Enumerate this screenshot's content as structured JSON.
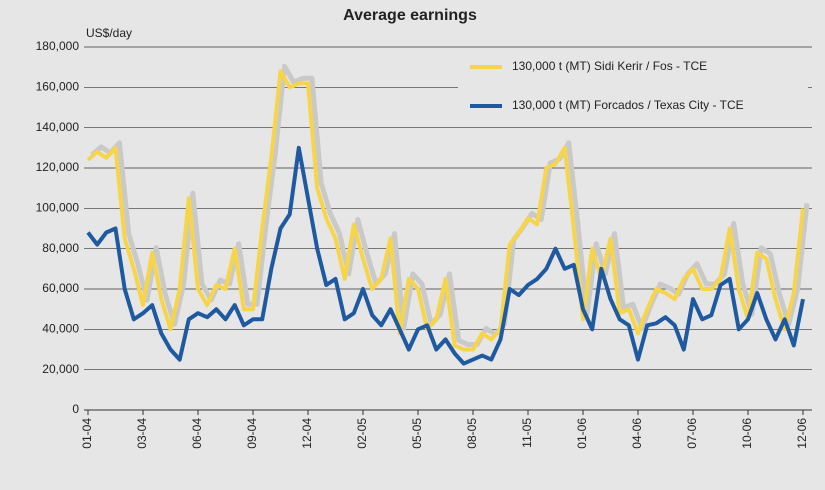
{
  "chart_data": {
    "type": "line",
    "title": "Average earnings",
    "ylabel": "US$/day",
    "categories": [
      "01-04",
      null,
      null,
      null,
      null,
      null,
      "03-04",
      null,
      null,
      null,
      null,
      null,
      "06-04",
      null,
      null,
      null,
      null,
      null,
      "09-04",
      null,
      null,
      null,
      null,
      null,
      "12-04",
      null,
      null,
      null,
      null,
      null,
      "02-05",
      null,
      null,
      null,
      null,
      null,
      "05-05",
      null,
      null,
      null,
      null,
      null,
      "08-05",
      null,
      null,
      null,
      null,
      null,
      "11-05",
      null,
      null,
      null,
      null,
      null,
      "01-06",
      null,
      null,
      null,
      null,
      null,
      "04-06",
      null,
      null,
      null,
      null,
      null,
      "07-06",
      null,
      null,
      null,
      null,
      null,
      "10-06",
      null,
      null,
      null,
      null,
      null,
      "12-06"
    ],
    "series": [
      {
        "name": "130,000 t (MT) Sidi Kerir / Fos - TCE",
        "color": "#f7d54a",
        "values": [
          124000,
          128000,
          125000,
          130000,
          85000,
          70000,
          52000,
          78000,
          55000,
          40000,
          60000,
          105000,
          60000,
          52000,
          62000,
          60000,
          80000,
          50000,
          50000,
          90000,
          125000,
          168000,
          160000,
          162000,
          162000,
          110000,
          95000,
          85000,
          65000,
          92000,
          75000,
          60000,
          65000,
          85000,
          38000,
          65000,
          60000,
          40000,
          45000,
          65000,
          32000,
          30000,
          30000,
          38000,
          35000,
          40000,
          82000,
          88000,
          95000,
          92000,
          120000,
          122000,
          130000,
          90000,
          45000,
          80000,
          65000,
          85000,
          48000,
          50000,
          38000,
          50000,
          60000,
          58000,
          55000,
          65000,
          70000,
          60000,
          60000,
          65000,
          90000,
          60000,
          45000,
          78000,
          75000,
          55000,
          40000,
          58000,
          100000
        ]
      },
      {
        "name": "130,000 t (MT) Forcados / Texas City - TCE",
        "color": "#1f5aa0",
        "values": [
          88000,
          82000,
          88000,
          90000,
          60000,
          45000,
          48000,
          52000,
          38000,
          30000,
          25000,
          45000,
          48000,
          46000,
          50000,
          45000,
          52000,
          42000,
          45000,
          45000,
          70000,
          90000,
          97000,
          130000,
          105000,
          80000,
          62000,
          65000,
          45000,
          48000,
          60000,
          47000,
          42000,
          50000,
          40000,
          30000,
          40000,
          42000,
          30000,
          35000,
          28000,
          23000,
          25000,
          27000,
          25000,
          35000,
          60000,
          57000,
          62000,
          65000,
          70000,
          80000,
          70000,
          72000,
          50000,
          40000,
          70000,
          55000,
          45000,
          42000,
          25000,
          42000,
          43000,
          46000,
          42000,
          30000,
          55000,
          45000,
          47000,
          62000,
          65000,
          40000,
          45000,
          58000,
          45000,
          35000,
          45000,
          32000,
          55000
        ]
      }
    ],
    "ylim": [
      0,
      180000
    ],
    "yticks": [
      0,
      {
        "value": 20000,
        "label": "20,000"
      },
      {
        "value": 40000,
        "label": "40,000"
      },
      {
        "value": 60000,
        "label": "60,000"
      },
      {
        "value": 80000,
        "label": "80,000"
      },
      {
        "value": 100000,
        "label": "100,000"
      },
      {
        "value": 120000,
        "label": "120,000"
      },
      {
        "value": 140000,
        "label": "140,000"
      },
      {
        "value": 160000,
        "label": "160,000"
      },
      {
        "value": 180000,
        "label": "180,000"
      }
    ],
    "grid": true,
    "legend": "upper right"
  }
}
